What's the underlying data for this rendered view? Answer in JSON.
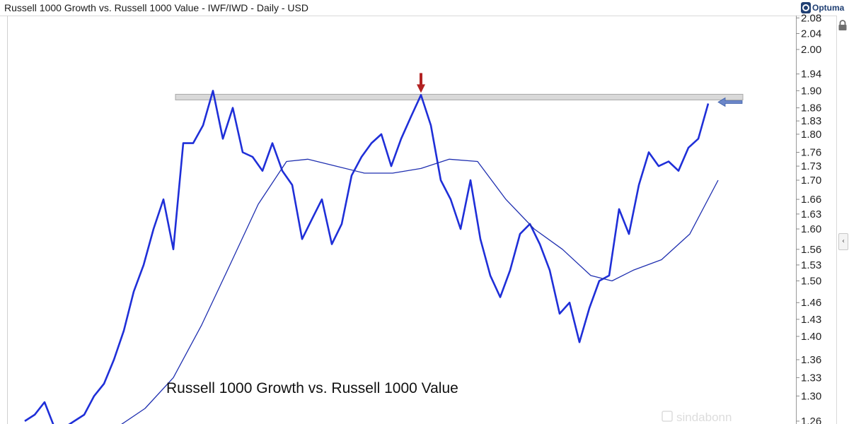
{
  "header": {
    "title": "Russell 1000 Growth vs. Russell 1000 Value - IWF/IWD - Daily - USD",
    "brand": "Optuma"
  },
  "watermark": "sindabonn",
  "icons": [
    "optuma-logo-icon",
    "lock-icon",
    "chevron-left-icon",
    "arrow-down-icon",
    "arrow-left-icon"
  ],
  "colors": {
    "price_line": "#1f2fd8",
    "moving_average": "#1f2fb0",
    "resistance_band": "#d9d9d9",
    "down_arrow": "#b22222",
    "left_arrow": "#6b86c9"
  },
  "chart_data": {
    "type": "line",
    "title": "Russell 1000 Growth vs. Russell 1000 Value - IWF/IWD - Daily - USD",
    "annotation": "Russell 1000 Growth vs. Russell 1000 Value",
    "xlabel": "",
    "ylabel": "",
    "scale": "log",
    "ylim": [
      1.26,
      2.09
    ],
    "grid": false,
    "legend": "none",
    "yticks": [
      "2.08",
      "2.04",
      "2.00",
      "1.94",
      "1.90",
      "1.86",
      "1.83",
      "1.80",
      "1.76",
      "1.73",
      "1.70",
      "1.66",
      "1.63",
      "1.60",
      "1.56",
      "1.53",
      "1.50",
      "1.46",
      "1.43",
      "1.40",
      "1.36",
      "1.33",
      "1.30",
      "1.26"
    ],
    "resistance_level": 1.885,
    "series": [
      {
        "role": "price",
        "x": [
          0,
          14,
          28,
          42,
          56,
          70,
          84,
          98,
          112,
          126,
          140,
          154,
          168,
          182,
          196,
          210,
          224,
          238,
          252,
          266,
          280,
          294,
          308,
          322,
          336,
          350,
          364,
          378,
          392,
          406,
          420,
          434,
          448,
          462,
          476,
          490,
          504,
          518,
          532,
          546,
          560,
          574,
          588,
          602,
          616,
          630,
          644,
          658,
          672,
          686,
          700,
          714,
          728,
          742,
          756,
          770,
          784,
          798,
          812,
          826,
          840,
          854,
          868,
          882,
          896,
          910,
          924,
          938,
          952,
          966
        ],
        "values": [
          1.26,
          1.27,
          1.29,
          1.25,
          1.25,
          1.26,
          1.27,
          1.3,
          1.32,
          1.36,
          1.41,
          1.48,
          1.53,
          1.6,
          1.66,
          1.56,
          1.78,
          1.78,
          1.82,
          1.9,
          1.79,
          1.86,
          1.76,
          1.75,
          1.72,
          1.78,
          1.72,
          1.69,
          1.58,
          1.62,
          1.66,
          1.57,
          1.61,
          1.71,
          1.75,
          1.78,
          1.8,
          1.73,
          1.79,
          1.84,
          1.89,
          1.82,
          1.7,
          1.66,
          1.6,
          1.7,
          1.58,
          1.51,
          1.47,
          1.52,
          1.59,
          1.61,
          1.57,
          1.52,
          1.44,
          1.46,
          1.39,
          1.45,
          1.5,
          1.51,
          1.64,
          1.59,
          1.69,
          1.76,
          1.73,
          1.74,
          1.72,
          1.77,
          1.79,
          1.87
        ]
      },
      {
        "role": "moving average",
        "x": [
          130,
          170,
          210,
          250,
          290,
          330,
          370,
          400,
          440,
          480,
          520,
          560,
          600,
          640,
          680,
          720,
          760,
          800,
          830,
          860,
          900,
          940,
          980
        ],
        "values": [
          1.25,
          1.28,
          1.33,
          1.42,
          1.53,
          1.65,
          1.74,
          1.745,
          1.73,
          1.715,
          1.715,
          1.725,
          1.745,
          1.74,
          1.66,
          1.6,
          1.56,
          1.51,
          1.5,
          1.52,
          1.54,
          1.59,
          1.7
        ]
      }
    ]
  }
}
